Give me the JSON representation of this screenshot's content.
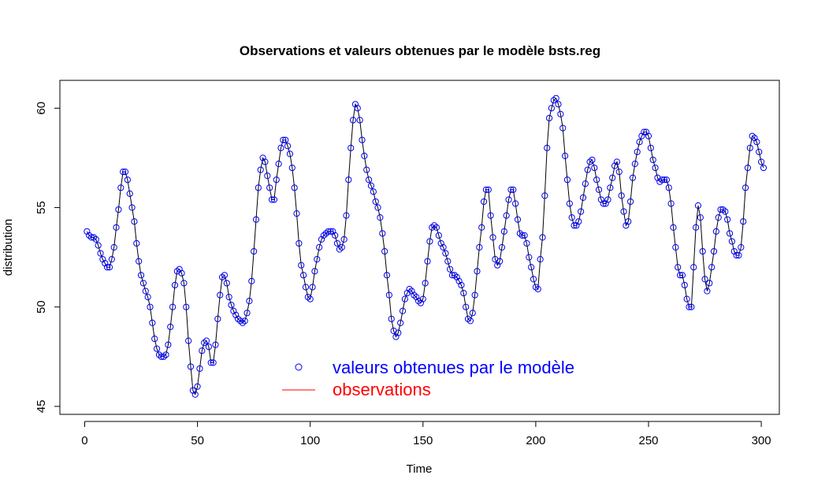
{
  "chart_data": {
    "type": "line",
    "title": "Observations et valeurs obtenues par le modèle bsts.reg",
    "xlabel": "Time",
    "ylabel": "distribution",
    "xlim": [
      -11,
      308
    ],
    "ylim": [
      44.6,
      61.4
    ],
    "xticks": [
      0,
      50,
      100,
      150,
      200,
      250,
      300
    ],
    "xtick_labels": [
      "0",
      "50",
      "100",
      "150",
      "200",
      "250",
      "300"
    ],
    "yticks": [
      45,
      50,
      55,
      60
    ],
    "ytick_labels": [
      "45",
      "50",
      "55",
      "60"
    ],
    "grid": false,
    "legend_position": "bottom-center",
    "colors": {
      "fitted": "#0000ff",
      "observed_line": "#000000",
      "legend_observed": "#ff0000"
    },
    "series": [
      {
        "name": "valeurs obtenues par le modèle",
        "marker": "open-circle"
      },
      {
        "name": "observations",
        "marker": "line"
      }
    ],
    "y": [
      53.8,
      53.6,
      53.5,
      53.5,
      53.4,
      53.1,
      52.7,
      52.4,
      52.2,
      52.0,
      52.0,
      52.4,
      53.0,
      54.0,
      54.9,
      56.0,
      56.8,
      56.8,
      56.4,
      55.7,
      55.0,
      54.3,
      53.2,
      52.3,
      51.6,
      51.2,
      50.8,
      50.5,
      50.0,
      49.2,
      48.4,
      47.9,
      47.6,
      47.5,
      47.5,
      47.6,
      48.1,
      49.0,
      50.0,
      51.1,
      51.8,
      51.9,
      51.7,
      51.2,
      50.0,
      48.3,
      47.0,
      45.8,
      45.6,
      46.0,
      46.9,
      47.8,
      48.2,
      48.3,
      48.0,
      47.2,
      47.2,
      48.1,
      49.4,
      50.6,
      51.5,
      51.6,
      51.2,
      50.5,
      50.1,
      49.8,
      49.6,
      49.4,
      49.3,
      49.2,
      49.3,
      49.7,
      50.3,
      51.3,
      52.8,
      54.4,
      56.0,
      56.9,
      57.5,
      57.3,
      56.6,
      56.0,
      55.4,
      55.4,
      56.4,
      57.2,
      58.0,
      58.4,
      58.4,
      58.1,
      57.7,
      57.0,
      56.0,
      54.7,
      53.2,
      52.1,
      51.6,
      51.0,
      50.5,
      50.4,
      51.0,
      51.8,
      52.4,
      53.0,
      53.4,
      53.6,
      53.7,
      53.8,
      53.8,
      53.8,
      53.6,
      53.2,
      52.9,
      53.0,
      53.4,
      54.6,
      56.4,
      58.0,
      59.4,
      60.2,
      60.0,
      59.4,
      58.4,
      57.6,
      56.9,
      56.4,
      56.1,
      55.8,
      55.3,
      55.0,
      54.5,
      53.7,
      52.8,
      51.6,
      50.6,
      49.4,
      48.8,
      48.5,
      48.7,
      49.2,
      49.8,
      50.4,
      50.7,
      50.9,
      50.8,
      50.6,
      50.5,
      50.3,
      50.2,
      50.4,
      51.2,
      52.3,
      53.3,
      54.0,
      54.1,
      54.0,
      53.6,
      53.2,
      53.0,
      52.7,
      52.3,
      51.9,
      51.6,
      51.6,
      51.5,
      51.3,
      51.1,
      50.7,
      50.0,
      49.4,
      49.3,
      49.7,
      50.6,
      51.8,
      53.0,
      54.0,
      55.3,
      55.9,
      55.9,
      54.6,
      53.5,
      52.4,
      52.1,
      52.3,
      53.0,
      53.8,
      54.6,
      55.4,
      55.9,
      55.9,
      55.2,
      54.4,
      53.7,
      53.6,
      53.6,
      53.2,
      52.5,
      52.0,
      51.4,
      51.0,
      50.9,
      52.4,
      53.5,
      55.6,
      58.0,
      59.5,
      60.0,
      60.4,
      60.5,
      60.2,
      59.7,
      59.0,
      57.6,
      56.4,
      55.2,
      54.5,
      54.1,
      54.1,
      54.3,
      54.8,
      55.5,
      56.2,
      56.9,
      57.3,
      57.4,
      57.0,
      56.4,
      55.9,
      55.4,
      55.2,
      55.2,
      55.4,
      56.0,
      56.5,
      57.1,
      57.3,
      56.8,
      55.6,
      54.8,
      54.1,
      54.3,
      55.3,
      56.5,
      57.2,
      57.8,
      58.3,
      58.6,
      58.8,
      58.8,
      58.6,
      58.0,
      57.4,
      57.0,
      56.5,
      56.3,
      56.4,
      56.4,
      56.4,
      56.0,
      55.2,
      54.0,
      53.0,
      52.0,
      51.6,
      51.6,
      51.1,
      50.4,
      50.0,
      50.0,
      52.0,
      54.0,
      55.1,
      54.5,
      52.8,
      51.4,
      50.8,
      51.2,
      52.0,
      52.8,
      53.8,
      54.5,
      54.9,
      54.9,
      54.8,
      54.4,
      53.7,
      53.3,
      52.8,
      52.6,
      52.6,
      53.0,
      54.3,
      56.0,
      57.0,
      58.0,
      58.6,
      58.5,
      58.3,
      57.8,
      57.3,
      57.0
    ]
  }
}
